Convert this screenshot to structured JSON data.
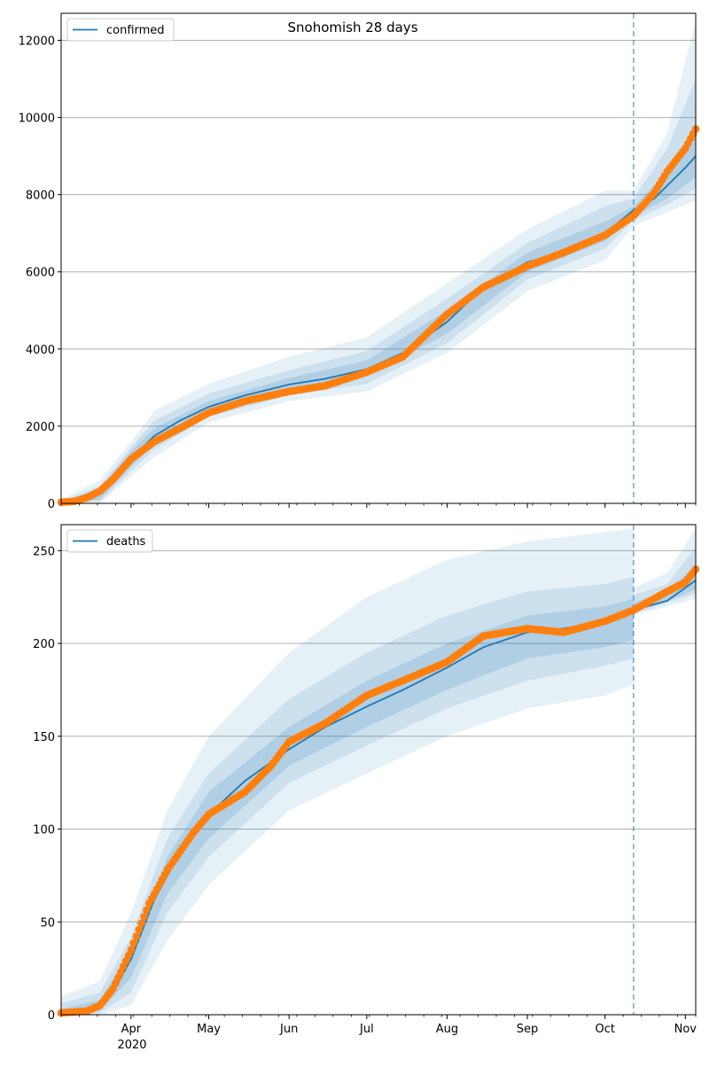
{
  "figure": {
    "title": "Snohomish 28 days",
    "year_label": "2020"
  },
  "colors": {
    "model_line": "#1f77b4",
    "observed": "#ff7f0e",
    "band": "#1f77b4",
    "grid": "#b0b0b0",
    "cutoff_line": "#1f77b4"
  },
  "x_axis": {
    "start": "2020-03-05",
    "end": "2020-11-05",
    "tick_labels": [
      {
        "date": "2020-04-01",
        "label": "Apr"
      },
      {
        "date": "2020-05-01",
        "label": "May"
      },
      {
        "date": "2020-06-01",
        "label": "Jun"
      },
      {
        "date": "2020-07-01",
        "label": "Jul"
      },
      {
        "date": "2020-08-01",
        "label": "Aug"
      },
      {
        "date": "2020-09-01",
        "label": "Sep"
      },
      {
        "date": "2020-10-01",
        "label": "Oct"
      },
      {
        "date": "2020-11-01",
        "label": "Nov"
      }
    ]
  },
  "chart_data": [
    {
      "type": "line",
      "title": "Snohomish 28 days",
      "legend": "confirmed",
      "legend_position": "top-left",
      "grid": "horizontal",
      "ylim": [
        0,
        12700
      ],
      "yticks": [
        0,
        2000,
        4000,
        6000,
        8000,
        10000,
        12000
      ],
      "forecast_start": "2020-10-12",
      "series": [
        {
          "name": "confirmed",
          "kind": "model median",
          "points": [
            [
              "2020-03-05",
              0
            ],
            [
              "2020-03-15",
              100
            ],
            [
              "2020-03-25",
              560
            ],
            [
              "2020-04-01",
              1150
            ],
            [
              "2020-04-10",
              1750
            ],
            [
              "2020-04-20",
              2150
            ],
            [
              "2020-05-01",
              2500
            ],
            [
              "2020-05-15",
              2800
            ],
            [
              "2020-06-01",
              3080
            ],
            [
              "2020-06-15",
              3230
            ],
            [
              "2020-07-01",
              3480
            ],
            [
              "2020-07-15",
              3900
            ],
            [
              "2020-08-01",
              4700
            ],
            [
              "2020-08-15",
              5600
            ],
            [
              "2020-09-01",
              6250
            ],
            [
              "2020-09-15",
              6500
            ],
            [
              "2020-10-01",
              7000
            ],
            [
              "2020-10-12",
              7600
            ],
            [
              "2020-10-20",
              7900
            ],
            [
              "2020-11-01",
              8700
            ],
            [
              "2020-11-05",
              9000
            ]
          ]
        },
        {
          "name": "observed",
          "kind": "observed",
          "points": [
            [
              "2020-03-05",
              30
            ],
            [
              "2020-03-10",
              50
            ],
            [
              "2020-03-15",
              150
            ],
            [
              "2020-03-20",
              320
            ],
            [
              "2020-03-25",
              620
            ],
            [
              "2020-04-01",
              1150
            ],
            [
              "2020-04-10",
              1600
            ],
            [
              "2020-04-20",
              1950
            ],
            [
              "2020-05-01",
              2350
            ],
            [
              "2020-05-15",
              2650
            ],
            [
              "2020-06-01",
              2900
            ],
            [
              "2020-06-15",
              3050
            ],
            [
              "2020-07-01",
              3400
            ],
            [
              "2020-07-15",
              3800
            ],
            [
              "2020-08-01",
              4900
            ],
            [
              "2020-08-15",
              5600
            ],
            [
              "2020-09-01",
              6150
            ],
            [
              "2020-09-15",
              6500
            ],
            [
              "2020-10-01",
              6950
            ],
            [
              "2020-10-12",
              7450
            ],
            [
              "2020-10-20",
              8050
            ],
            [
              "2020-10-25",
              8600
            ],
            [
              "2020-11-01",
              9200
            ],
            [
              "2020-11-05",
              9700
            ]
          ]
        }
      ],
      "bands": [
        {
          "level": "outer",
          "points": [
            [
              "2020-03-05",
              0,
              100
            ],
            [
              "2020-03-20",
              0,
              600
            ],
            [
              "2020-04-01",
              700,
              1600
            ],
            [
              "2020-04-10",
              1200,
              2400
            ],
            [
              "2020-05-01",
              2100,
              3100
            ],
            [
              "2020-06-01",
              2650,
              3800
            ],
            [
              "2020-07-01",
              2900,
              4300
            ],
            [
              "2020-08-01",
              3900,
              5700
            ],
            [
              "2020-09-01",
              5500,
              7100
            ],
            [
              "2020-10-01",
              6300,
              8100
            ],
            [
              "2020-10-12",
              7200,
              8100
            ],
            [
              "2020-10-25",
              7550,
              9600
            ],
            [
              "2020-11-05",
              7850,
              12500
            ]
          ]
        },
        {
          "level": "middle",
          "points": [
            [
              "2020-03-05",
              0,
              60
            ],
            [
              "2020-03-20",
              50,
              450
            ],
            [
              "2020-04-01",
              850,
              1450
            ],
            [
              "2020-04-10",
              1400,
              2150
            ],
            [
              "2020-05-01",
              2250,
              2850
            ],
            [
              "2020-06-01",
              2800,
              3450
            ],
            [
              "2020-07-01",
              3100,
              3950
            ],
            [
              "2020-08-01",
              4150,
              5300
            ],
            [
              "2020-09-01",
              5800,
              6750
            ],
            [
              "2020-10-01",
              6600,
              7700
            ],
            [
              "2020-10-12",
              7350,
              7900
            ],
            [
              "2020-10-25",
              7750,
              9200
            ],
            [
              "2020-11-05",
              8150,
              11000
            ]
          ]
        },
        {
          "level": "inner",
          "points": [
            [
              "2020-03-05",
              0,
              30
            ],
            [
              "2020-03-20",
              100,
              380
            ],
            [
              "2020-04-01",
              950,
              1350
            ],
            [
              "2020-04-10",
              1550,
              1950
            ],
            [
              "2020-05-01",
              2380,
              2650
            ],
            [
              "2020-06-01",
              2950,
              3250
            ],
            [
              "2020-07-01",
              3300,
              3700
            ],
            [
              "2020-08-01",
              4400,
              5000
            ],
            [
              "2020-09-01",
              6000,
              6500
            ],
            [
              "2020-10-01",
              6800,
              7300
            ],
            [
              "2020-10-12",
              7450,
              7700
            ],
            [
              "2020-10-25",
              7900,
              8600
            ],
            [
              "2020-11-05",
              8450,
              9700
            ]
          ]
        }
      ]
    },
    {
      "type": "line",
      "legend": "deaths",
      "legend_position": "top-left",
      "grid": "horizontal",
      "ylim": [
        0,
        264
      ],
      "yticks": [
        0,
        50,
        100,
        150,
        200,
        250
      ],
      "forecast_start": "2020-10-12",
      "series": [
        {
          "name": "deaths",
          "kind": "model median",
          "points": [
            [
              "2020-03-05",
              0
            ],
            [
              "2020-03-15",
              2
            ],
            [
              "2020-03-25",
              12
            ],
            [
              "2020-04-01",
              30
            ],
            [
              "2020-04-10",
              62
            ],
            [
              "2020-04-20",
              88
            ],
            [
              "2020-05-01",
              108
            ],
            [
              "2020-05-15",
              126
            ],
            [
              "2020-06-01",
              143
            ],
            [
              "2020-06-15",
              155
            ],
            [
              "2020-07-01",
              166
            ],
            [
              "2020-07-15",
              175
            ],
            [
              "2020-08-01",
              187
            ],
            [
              "2020-08-15",
              198
            ],
            [
              "2020-09-01",
              206
            ],
            [
              "2020-09-15",
              208
            ],
            [
              "2020-10-01",
              212
            ],
            [
              "2020-10-12",
              218
            ],
            [
              "2020-10-25",
              223
            ],
            [
              "2020-11-05",
              234
            ]
          ]
        },
        {
          "name": "observed",
          "kind": "observed",
          "points": [
            [
              "2020-03-05",
              1
            ],
            [
              "2020-03-15",
              2
            ],
            [
              "2020-03-20",
              5
            ],
            [
              "2020-03-25",
              14
            ],
            [
              "2020-04-01",
              35
            ],
            [
              "2020-04-08",
              60
            ],
            [
              "2020-04-15",
              78
            ],
            [
              "2020-04-25",
              98
            ],
            [
              "2020-05-01",
              108
            ],
            [
              "2020-05-15",
              120
            ],
            [
              "2020-05-25",
              134
            ],
            [
              "2020-06-01",
              147
            ],
            [
              "2020-06-15",
              157
            ],
            [
              "2020-07-01",
              172
            ],
            [
              "2020-07-15",
              180
            ],
            [
              "2020-08-01",
              190
            ],
            [
              "2020-08-15",
              204
            ],
            [
              "2020-09-01",
              208
            ],
            [
              "2020-09-15",
              206
            ],
            [
              "2020-10-01",
              212
            ],
            [
              "2020-10-12",
              218
            ],
            [
              "2020-10-25",
              228
            ],
            [
              "2020-11-01",
              233
            ],
            [
              "2020-11-05",
              240
            ]
          ]
        }
      ],
      "bands": [
        {
          "level": "outer",
          "points": [
            [
              "2020-03-05",
              0,
              10
            ],
            [
              "2020-03-20",
              0,
              18
            ],
            [
              "2020-04-01",
              5,
              55
            ],
            [
              "2020-04-15",
              40,
              110
            ],
            [
              "2020-05-01",
              70,
              150
            ],
            [
              "2020-06-01",
              110,
              195
            ],
            [
              "2020-07-01",
              130,
              225
            ],
            [
              "2020-08-01",
              150,
              245
            ],
            [
              "2020-09-01",
              165,
              255
            ],
            [
              "2020-10-01",
              172,
              260
            ],
            [
              "2020-10-12",
              178,
              262
            ],
            [
              "2020-10-12",
              215,
              230
            ],
            [
              "2020-10-25",
              220,
              238
            ],
            [
              "2020-11-05",
              224,
              262
            ]
          ]
        },
        {
          "level": "middle",
          "points": [
            [
              "2020-03-05",
              0,
              6
            ],
            [
              "2020-03-20",
              1,
              12
            ],
            [
              "2020-04-01",
              12,
              42
            ],
            [
              "2020-04-15",
              55,
              95
            ],
            [
              "2020-05-01",
              85,
              130
            ],
            [
              "2020-06-01",
              125,
              170
            ],
            [
              "2020-07-01",
              145,
              195
            ],
            [
              "2020-08-01",
              165,
              215
            ],
            [
              "2020-09-01",
              180,
              228
            ],
            [
              "2020-10-01",
              188,
              232
            ],
            [
              "2020-10-12",
              192,
              236
            ],
            [
              "2020-10-12",
              216,
              226
            ],
            [
              "2020-10-25",
              222,
              232
            ],
            [
              "2020-11-05",
              227,
              252
            ]
          ]
        },
        {
          "level": "inner",
          "points": [
            [
              "2020-03-05",
              0,
              3
            ],
            [
              "2020-03-20",
              2,
              8
            ],
            [
              "2020-04-01",
              20,
              35
            ],
            [
              "2020-04-15",
              65,
              85
            ],
            [
              "2020-05-01",
              95,
              120
            ],
            [
              "2020-06-01",
              134,
              155
            ],
            [
              "2020-07-01",
              155,
              180
            ],
            [
              "2020-08-01",
              175,
              200
            ],
            [
              "2020-09-01",
              192,
              215
            ],
            [
              "2020-10-01",
              198,
              220
            ],
            [
              "2020-10-12",
              202,
              224
            ],
            [
              "2020-10-12",
              217,
              222
            ],
            [
              "2020-10-25",
              223,
              228
            ],
            [
              "2020-11-05",
              229,
              242
            ]
          ]
        }
      ]
    }
  ]
}
